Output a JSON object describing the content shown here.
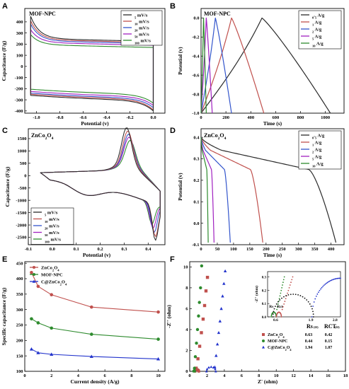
{
  "figure": {
    "panels": [
      {
        "id": "A",
        "letter": "A",
        "label": "MOF-NPC",
        "type": "cv",
        "xlabel": "Potential (v)",
        "ylabel": "Capacitance (F/g)",
        "xlim": [
          -1.1,
          0.1
        ],
        "ylim": [
          -420,
          520
        ],
        "xticks": [
          -1.0,
          -0.8,
          -0.6,
          -0.4,
          -0.2,
          0.0
        ],
        "xtick_labels": [
          "-1.0",
          "-0.8",
          "-0.6",
          "-0.4",
          "-0.2",
          "0.0"
        ],
        "yticks": [
          -400,
          -300,
          -200,
          -100,
          0,
          100,
          200,
          300,
          400
        ],
        "ytick_labels": [
          "-400",
          "-300",
          "-200",
          "-100",
          "0",
          "100",
          "200",
          "300",
          "400"
        ],
        "legend_position": "top-right",
        "legend": [
          "5 mV/s",
          "10 mV/s",
          "20 mV/s",
          "50 mV/s",
          "100 mV/s"
        ]
      },
      {
        "id": "B",
        "letter": "B",
        "label": "MOF-NPC",
        "type": "gcd",
        "xlabel": "Time (s)",
        "ylabel": "Potential (v)",
        "xlim": [
          0,
          1150
        ],
        "ylim": [
          -1.0,
          0.1
        ],
        "xticks": [
          0,
          200,
          400,
          600,
          800,
          1000
        ],
        "xtick_labels": [
          "0",
          "200",
          "400",
          "600",
          "800",
          "1000"
        ],
        "yticks": [
          -1.0,
          -0.8,
          -0.6,
          -0.4,
          -0.2,
          0.0
        ],
        "ytick_labels": [
          "-1.0",
          "-0.8",
          "-0.6",
          "-0.4",
          "-0.2",
          "0.0"
        ],
        "legend_position": "top-right",
        "legend": [
          "0.5 A/g",
          "1 A/g",
          "2 A/g",
          "5 A/g",
          "10 A/g"
        ]
      },
      {
        "id": "C",
        "letter": "C",
        "label": "ZnCo2O4",
        "type": "cv",
        "xlabel": "Potential (v)",
        "ylabel": "Capacitance (F/g)",
        "xlim": [
          -0.1,
          0.47
        ],
        "ylim": [
          -2800,
          1900
        ],
        "xticks": [
          -0.1,
          0.0,
          0.1,
          0.2,
          0.3,
          0.4
        ],
        "xtick_labels": [
          "-0.1",
          "0.0",
          "0.1",
          "0.2",
          "0.3",
          "0.4"
        ],
        "yticks": [
          -2500,
          -2000,
          -1500,
          -1000,
          -500,
          0,
          500,
          1000,
          1500
        ],
        "ytick_labels": [
          "-2500",
          "-2000",
          "-1500",
          "-1000",
          "-500",
          "0",
          "500",
          "1000",
          "1500"
        ],
        "legend_position": "bottom-left",
        "legend": [
          "5 mV/s",
          "10 mV/s",
          "20 mV/s",
          "50 mV/s",
          "100 mV/s"
        ]
      },
      {
        "id": "D",
        "letter": "D",
        "label": "ZnCo2O4",
        "type": "gcd",
        "xlabel": "Time (s)",
        "ylabel": "Potential (v)",
        "xlim": [
          0,
          440
        ],
        "ylim": [
          -0.1,
          0.44
        ],
        "xticks": [
          0,
          50,
          100,
          150,
          200,
          250,
          300,
          350,
          400
        ],
        "xtick_labels": [
          "0",
          "50",
          "100",
          "150",
          "200",
          "250",
          "300",
          "350",
          "400"
        ],
        "yticks": [
          -0.1,
          0.0,
          0.1,
          0.2,
          0.3,
          0.4
        ],
        "ytick_labels": [
          "-0.1",
          "0.0",
          "0.1",
          "0.2",
          "0.3",
          "0.4"
        ],
        "legend_position": "top-right",
        "legend": [
          "0.5 A/g",
          "1 A/g",
          "2 A/g",
          "5 A/g",
          "10 A/g"
        ]
      },
      {
        "id": "E",
        "letter": "E",
        "label": "",
        "type": "rate",
        "xlabel": "Current density (A/g)",
        "ylabel": "Specific capacitance (F/g)",
        "xlim": [
          0,
          10.5
        ],
        "ylim": [
          100,
          455
        ],
        "xticks": [
          0,
          2,
          4,
          6,
          8,
          10
        ],
        "xtick_labels": [
          "0",
          "2",
          "4",
          "6",
          "8",
          "10"
        ],
        "yticks": [
          100,
          150,
          200,
          250,
          300,
          350,
          400,
          450
        ],
        "ytick_labels": [
          "100",
          "150",
          "200",
          "250",
          "300",
          "350",
          "400",
          "450"
        ],
        "legend_position": "top-left",
        "legend": [
          "ZnCo2O4",
          "MOF-NPC",
          "C@ZnCo2O4"
        ]
      },
      {
        "id": "F",
        "letter": "F",
        "label": "",
        "type": "nyquist",
        "xlabel": "Z' (ohm)",
        "ylabel": "-Z'' (ohm)",
        "xlim": [
          0,
          18
        ],
        "ylim": [
          0,
          10.5
        ],
        "xticks": [
          0,
          2,
          4,
          6,
          8,
          10,
          12,
          14,
          16,
          18
        ],
        "xtick_labels": [
          "0",
          "2",
          "4",
          "6",
          "8",
          "10",
          "12",
          "14",
          "16",
          "18"
        ],
        "yticks": [
          0,
          2,
          4,
          6,
          8,
          10
        ],
        "ytick_labels": [
          "0",
          "2",
          "4",
          "6",
          "8",
          "10"
        ],
        "legend_position": "bottom-right",
        "legend": [
          "ZnCo2O4",
          "MOF-NPC",
          "C@ZnCo2O4"
        ],
        "inset": {
          "xlabel": "Z' (ohm)",
          "ylabel": "-Z'' (ohm)",
          "xlim": [
            0.3,
            3.0
          ],
          "ylim": [
            0,
            0.34
          ],
          "xticks": [
            0.5,
            1.0,
            1.5,
            2.0,
            2.5
          ],
          "xtick_labels": [
            "0.5",
            "1.0",
            "1.5",
            "2.0",
            "2.5"
          ],
          "yticks": [
            0.0,
            0.1,
            0.2,
            0.3
          ],
          "ytick_labels": [
            "0.0",
            "0.1",
            "0.2",
            "0.3"
          ],
          "rs_label": "Rs",
          "rct_label": "Rct",
          "x_marks": [
            "0.6",
            "1.9",
            "2.8"
          ]
        },
        "table": {
          "col_rs": "Rs",
          "col_rct": "RCT",
          "unit": "(Ω)",
          "rows": [
            {
              "name": "ZnCo2O4",
              "rs": "0.63",
              "rct": "0.42"
            },
            {
              "name": "MOF-NPC",
              "rs": "0.44",
              "rct": "0.15"
            },
            {
              "name": "C@ZnCo2O4",
              "rs": "1.94",
              "rct": "1.07"
            }
          ]
        }
      }
    ]
  },
  "chart_data": [
    {
      "panel": "A",
      "type": "line",
      "title": "MOF-NPC",
      "xlabel": "Potential (v)",
      "ylabel": "Capacitance (F/g)",
      "xlim": [
        -1.1,
        0.1
      ],
      "ylim": [
        -420,
        520
      ],
      "grid": false,
      "legend": "top-right",
      "series": [
        {
          "name": "5 mV/s",
          "color": "#2b2b2b",
          "v_range": [
            -1.05,
            0.0
          ],
          "charge_plateau": 250,
          "discharge_plateau": -300,
          "peak_max": 450,
          "peak_min": -400
        },
        {
          "name": "10 mV/s",
          "color": "#c0504d",
          "v_range": [
            -1.05,
            0.0
          ],
          "charge_plateau": 240,
          "discharge_plateau": -290,
          "peak_max": 410,
          "peak_min": -390
        },
        {
          "name": "20 mV/s",
          "color": "#3355cc",
          "v_range": [
            -1.05,
            0.0
          ],
          "charge_plateau": 230,
          "discharge_plateau": -280,
          "peak_max": 380,
          "peak_min": -370
        },
        {
          "name": "50 mV/s",
          "color": "#a020c0",
          "v_range": [
            -1.05,
            0.0
          ],
          "charge_plateau": 215,
          "discharge_plateau": -265,
          "peak_max": 330,
          "peak_min": -350
        },
        {
          "name": "100 mV/s",
          "color": "#2e8b2e",
          "v_range": [
            -1.05,
            0.0
          ],
          "charge_plateau": 195,
          "discharge_plateau": -245,
          "peak_max": 285,
          "peak_min": -330
        }
      ]
    },
    {
      "panel": "B",
      "type": "line",
      "title": "MOF-NPC",
      "xlabel": "Time (s)",
      "ylabel": "Potential (v)",
      "xlim": [
        0,
        1150
      ],
      "ylim": [
        -1.0,
        0.1
      ],
      "grid": false,
      "legend": "top-right",
      "series": [
        {
          "name": "0.5 A/g",
          "color": "#2b2b2b",
          "t_peak": 490,
          "t_end": 1040
        },
        {
          "name": "1 A/g",
          "color": "#c0504d",
          "t_peak": 245,
          "t_end": 505
        },
        {
          "name": "2 A/g",
          "color": "#3355cc",
          "t_peak": 115,
          "t_end": 245
        },
        {
          "name": "5 A/g",
          "color": "#a020c0",
          "t_peak": 42,
          "t_end": 90
        },
        {
          "name": "10 A/g",
          "color": "#2e8b2e",
          "t_peak": 20,
          "t_end": 42
        }
      ]
    },
    {
      "panel": "C",
      "type": "line",
      "title": "ZnCo2O4",
      "xlabel": "Potential (v)",
      "ylabel": "Capacitance (F/g)",
      "xlim": [
        -0.1,
        0.47
      ],
      "ylim": [
        -2800,
        1900
      ],
      "grid": false,
      "legend": "bottom-left",
      "series": [
        {
          "name": "5 mV/s",
          "color": "#2b2b2b",
          "anodic_peak": [
            0.31,
            1720
          ],
          "cathodic_peak": [
            0.43,
            -2350
          ],
          "x_min": -0.05,
          "x_max": 0.45
        },
        {
          "name": "10 mV/s",
          "color": "#c0504d",
          "anodic_peak": [
            0.315,
            1580
          ],
          "cathodic_peak": [
            0.43,
            -2200
          ],
          "x_min": -0.05,
          "x_max": 0.45
        },
        {
          "name": "20 mV/s",
          "color": "#3355cc",
          "anodic_peak": [
            0.318,
            1450
          ],
          "cathodic_peak": [
            0.425,
            -2050
          ],
          "x_min": -0.05,
          "x_max": 0.45
        },
        {
          "name": "50 mV/s",
          "color": "#a020c0",
          "anodic_peak": [
            0.32,
            1330
          ],
          "cathodic_peak": [
            0.42,
            -1900
          ],
          "x_min": -0.05,
          "x_max": 0.45
        },
        {
          "name": "100 mV/s",
          "color": "#2e8b2e",
          "anodic_peak": [
            0.325,
            1200
          ],
          "cathodic_peak": [
            0.415,
            -1750
          ],
          "x_min": -0.05,
          "x_max": 0.45
        }
      ]
    },
    {
      "panel": "D",
      "type": "line",
      "title": "ZnCo2O4",
      "xlabel": "Time (s)",
      "ylabel": "Potential (v)",
      "xlim": [
        0,
        440
      ],
      "ylim": [
        -0.1,
        0.44
      ],
      "grid": false,
      "legend": "top-right",
      "series": [
        {
          "name": "0.5 A/g",
          "color": "#2b2b2b",
          "t_end": 415
        },
        {
          "name": "1 A/g",
          "color": "#c0504d",
          "t_end": 190
        },
        {
          "name": "2 A/g",
          "color": "#3355cc",
          "t_end": 90
        },
        {
          "name": "5 A/g",
          "color": "#a020c0",
          "t_end": 40
        },
        {
          "name": "10 A/g",
          "color": "#2e8b2e",
          "t_end": 22
        }
      ]
    },
    {
      "panel": "E",
      "type": "line",
      "xlabel": "Current density (A/g)",
      "ylabel": "Specific capacitance (F/g)",
      "xlim": [
        0,
        10.5
      ],
      "ylim": [
        100,
        455
      ],
      "grid": false,
      "legend": "top-left",
      "x": [
        0.5,
        1,
        2,
        5,
        10
      ],
      "series": [
        {
          "name": "ZnCo2O4",
          "color": "#c0504d",
          "marker": "circle",
          "values": [
            420,
            375,
            348,
            308,
            292
          ]
        },
        {
          "name": "MOF-NPC",
          "color": "#2e8b2e",
          "marker": "circle",
          "values": [
            270,
            257,
            240,
            220,
            204
          ]
        },
        {
          "name": "C@ZnCo2O4",
          "color": "#2233cc",
          "marker": "triangle",
          "values": [
            172,
            160,
            155,
            148,
            140
          ]
        }
      ]
    },
    {
      "panel": "F",
      "type": "scatter",
      "xlabel": "Z' (ohm)",
      "ylabel": "-Z'' (ohm)",
      "xlim": [
        0,
        18
      ],
      "ylim": [
        0,
        10.5
      ],
      "grid": false,
      "legend": "bottom-right",
      "series": [
        {
          "name": "ZnCo2O4",
          "color": "#c0504d",
          "marker": "square",
          "rs": 0.63,
          "rct": 0.42,
          "tail_points": [
            [
              0.75,
              0.3
            ],
            [
              0.95,
              1.2
            ],
            [
              1.15,
              2.4
            ],
            [
              1.35,
              3.7
            ],
            [
              1.55,
              5.0
            ],
            [
              1.72,
              6.3
            ],
            [
              1.88,
              7.7
            ],
            [
              2.05,
              9.0
            ]
          ]
        },
        {
          "name": "MOF-NPC",
          "color": "#2e8b2e",
          "marker": "circle",
          "rs": 0.44,
          "rct": 0.15,
          "tail_points": [
            [
              0.55,
              0.3
            ],
            [
              0.65,
              1.4
            ],
            [
              0.78,
              2.7
            ],
            [
              0.9,
              4.0
            ],
            [
              1.02,
              5.3
            ],
            [
              1.12,
              6.6
            ],
            [
              1.25,
              8.0
            ],
            [
              1.38,
              10.1
            ]
          ]
        },
        {
          "name": "C@ZnCo2O4",
          "color": "#2233cc",
          "marker": "triangle",
          "rs": 1.94,
          "rct": 1.07,
          "tail_points": [
            [
              2.9,
              0.4
            ],
            [
              3.05,
              1.5
            ],
            [
              3.2,
              2.6
            ],
            [
              3.35,
              3.7
            ],
            [
              3.5,
              4.8
            ],
            [
              3.65,
              6.0
            ],
            [
              3.8,
              7.2
            ],
            [
              3.95,
              8.4
            ],
            [
              4.1,
              9.6
            ]
          ]
        }
      ]
    }
  ]
}
